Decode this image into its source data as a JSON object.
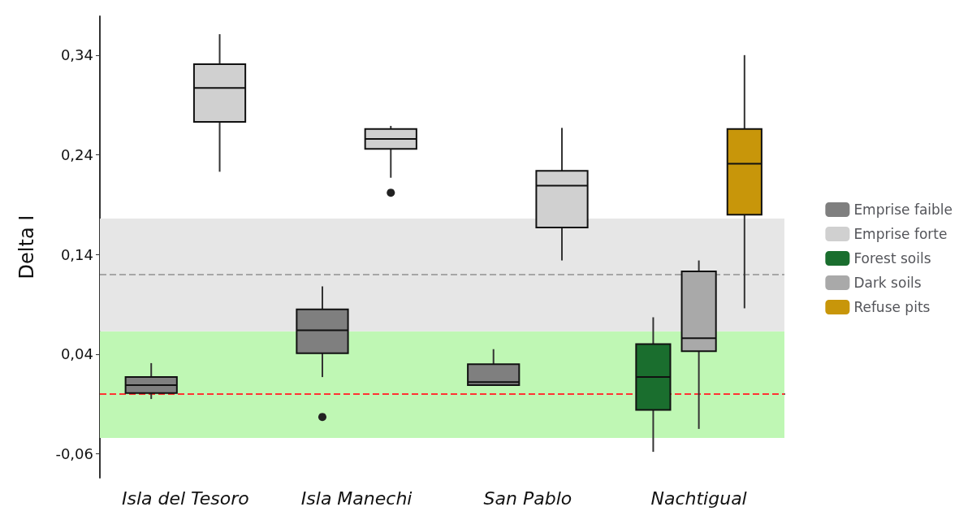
{
  "chart_data": {
    "type": "box",
    "ylabel": "Delta I",
    "categories": [
      "Isla del Tesoro",
      "Isla Manechi",
      "San Pablo",
      "Nachtigual"
    ],
    "ylim": [
      -0.084,
      0.379
    ],
    "yticks": [
      {
        "value": -0.06,
        "label": "-0,06"
      },
      {
        "value": 0.04,
        "label": "0,04"
      },
      {
        "value": 0.14,
        "label": "0,14"
      },
      {
        "value": 0.24,
        "label": "0,24"
      },
      {
        "value": 0.34,
        "label": "0,34"
      }
    ],
    "grid": false,
    "legend": "right",
    "series": [
      {
        "name": "Emprise faible",
        "color": "#7f7f7f",
        "boxes": [
          {
            "low": -0.005,
            "q1": 0.001,
            "median": 0.009,
            "q3": 0.017,
            "high": 0.031
          },
          {
            "low": 0.017,
            "q1": 0.041,
            "median": 0.064,
            "q3": 0.085,
            "high": 0.108,
            "outliers": [
              -0.023
            ]
          },
          {
            "low": 0.009,
            "q1": 0.009,
            "median": 0.012,
            "q3": 0.03,
            "high": 0.045
          },
          null
        ]
      },
      {
        "name": "Emprise forte",
        "color": "#d0d0d0",
        "boxes": [
          {
            "low": 0.223,
            "q1": 0.273,
            "median": 0.307,
            "q3": 0.331,
            "high": 0.361
          },
          {
            "low": 0.217,
            "q1": 0.246,
            "median": 0.256,
            "q3": 0.266,
            "high": 0.269,
            "outliers": [
              0.202
            ]
          },
          {
            "low": 0.134,
            "q1": 0.167,
            "median": 0.209,
            "q3": 0.224,
            "high": 0.267
          },
          null
        ]
      },
      {
        "name": "Forest soils",
        "color": "#1a6e2e",
        "boxes": [
          null,
          null,
          null,
          {
            "low": -0.058,
            "q1": -0.016,
            "median": 0.017,
            "q3": 0.05,
            "high": 0.077
          }
        ]
      },
      {
        "name": "Dark soils",
        "color": "#a9a9a9",
        "boxes": [
          null,
          null,
          null,
          {
            "low": -0.035,
            "q1": 0.043,
            "median": 0.056,
            "q3": 0.123,
            "high": 0.134
          }
        ]
      },
      {
        "name": "Refuse pits",
        "color": "#c8960a",
        "boxes": [
          null,
          null,
          null,
          {
            "low": 0.086,
            "q1": 0.18,
            "median": 0.231,
            "q3": 0.266,
            "high": 0.34
          }
        ]
      }
    ],
    "bands": [
      {
        "axis": "y",
        "from": -0.044,
        "to": 0.063,
        "color": "#bff7b4"
      },
      {
        "axis": "y",
        "from": 0.063,
        "to": 0.176,
        "color": "#e6e6e6"
      }
    ],
    "ref_lines": [
      {
        "axis": "y",
        "value": 0.12,
        "color": "#a6a6a6",
        "line_style": "dashed"
      },
      {
        "axis": "y",
        "value": 0,
        "color": "#ff3333",
        "line_style": "dashed"
      }
    ]
  }
}
